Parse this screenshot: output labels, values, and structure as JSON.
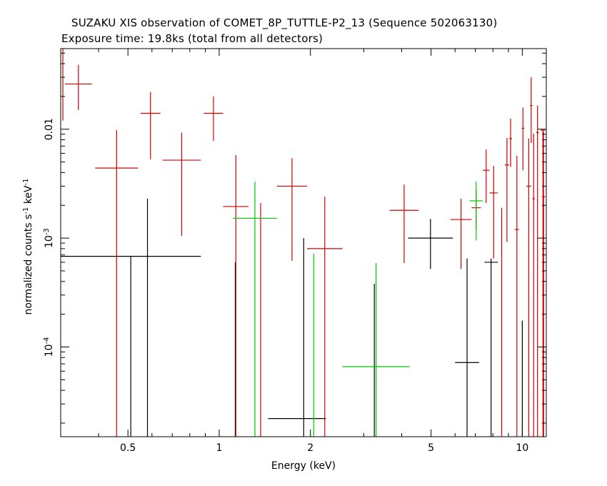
{
  "title": "SUZAKU XIS observation of COMET_8P_TUTTLE-P2_13 (Sequence 502063130)",
  "subtitle": "Exposure time: 19.8ks (total from all detectors)",
  "chart_data": {
    "type": "scatter",
    "xlabel": "Energy (keV)",
    "ylabel": "normalized counts s^-1 keV^-1",
    "x_scale": "log",
    "y_scale": "log",
    "xlim": [
      0.3,
      12.0
    ],
    "ylim": [
      1.5e-05,
      0.055
    ],
    "x_ticks": [
      0.5,
      1,
      2,
      5,
      10
    ],
    "x_tick_labels": [
      "0.5",
      "1",
      "2",
      "5",
      "10"
    ],
    "y_ticks": [
      0.0001,
      0.001,
      0.01
    ],
    "y_tick_labels": [
      {
        "base": "10",
        "exp": "-4"
      },
      {
        "base": "10",
        "exp": "-3"
      },
      {
        "base": "0.01",
        "exp": ""
      }
    ],
    "series": [
      {
        "color": "#000000",
        "points": [
          {
            "x0": 0.3,
            "x1": 0.87,
            "y": 0.00068,
            "ylo": 1.5e-05,
            "yhi": 0.00068
          },
          {
            "x0": 0.58,
            "x1": 0.58,
            "y": 0.00068,
            "ylo": 1.5e-05,
            "yhi": 0.0023
          },
          {
            "x0": 1.13,
            "x1": 1.13,
            "y": 1.5e-05,
            "ylo": 1.5e-05,
            "yhi": 0.0006
          },
          {
            "x0": 1.45,
            "x1": 2.25,
            "y": 2.2e-05,
            "ylo": 2.2e-05,
            "yhi": 2.2e-05
          },
          {
            "x0": 1.9,
            "x1": 1.9,
            "y": 2.2e-05,
            "ylo": 1.5e-05,
            "yhi": 0.001
          },
          {
            "x0": 3.25,
            "x1": 3.25,
            "y": 1.5e-05,
            "ylo": 1.5e-05,
            "yhi": 0.00038
          },
          {
            "x0": 4.2,
            "x1": 5.9,
            "y": 0.001,
            "ylo": 0.00052,
            "yhi": 0.0015
          },
          {
            "x0": 6.0,
            "x1": 7.2,
            "y": 7.2e-05,
            "ylo": 1.5e-05,
            "yhi": 0.00065
          },
          {
            "x0": 7.5,
            "x1": 8.3,
            "y": 0.0006,
            "ylo": 1.5e-05,
            "yhi": 0.00065
          },
          {
            "x0": 10.0,
            "x1": 10.0,
            "y": 1.5e-05,
            "ylo": 1.5e-05,
            "yhi": 0.000175
          }
        ]
      },
      {
        "color": "#d40000",
        "points": [
          {
            "x0": 0.305,
            "x1": 0.305,
            "y": 0.028,
            "ylo": 0.012,
            "yhi": 0.055
          },
          {
            "x0": 0.31,
            "x1": 0.38,
            "y": 0.026,
            "ylo": 0.015,
            "yhi": 0.039
          },
          {
            "x0": 0.39,
            "x1": 0.54,
            "y": 0.0044,
            "ylo": 1.5e-05,
            "yhi": 0.0098
          },
          {
            "x0": 0.55,
            "x1": 0.64,
            "y": 0.014,
            "ylo": 0.0053,
            "yhi": 0.022
          },
          {
            "x0": 0.65,
            "x1": 0.87,
            "y": 0.0052,
            "ylo": 0.00105,
            "yhi": 0.0093
          },
          {
            "x0": 0.89,
            "x1": 1.03,
            "y": 0.014,
            "ylo": 0.0078,
            "yhi": 0.02
          },
          {
            "x0": 1.03,
            "x1": 1.25,
            "y": 0.00195,
            "ylo": 1.5e-05,
            "yhi": 0.0058
          },
          {
            "x0": 1.37,
            "x1": 1.37,
            "y": 1.5e-05,
            "ylo": 1.5e-05,
            "yhi": 0.0021
          },
          {
            "x0": 1.55,
            "x1": 1.95,
            "y": 0.003,
            "ylo": 0.00062,
            "yhi": 0.0054
          },
          {
            "x0": 1.95,
            "x1": 2.55,
            "y": 0.0008,
            "ylo": 1.5e-05,
            "yhi": 0.0024
          },
          {
            "x0": 3.65,
            "x1": 4.55,
            "y": 0.0018,
            "ylo": 0.00059,
            "yhi": 0.0031
          },
          {
            "x0": 5.8,
            "x1": 6.8,
            "y": 0.00148,
            "ylo": 0.00052,
            "yhi": 0.0023
          },
          {
            "x0": 6.8,
            "x1": 7.3,
            "y": 0.0019,
            "ylo": 0.0012,
            "yhi": 0.0028
          },
          {
            "x0": 7.4,
            "x1": 7.8,
            "y": 0.0042,
            "ylo": 0.0021,
            "yhi": 0.0065
          },
          {
            "x0": 7.8,
            "x1": 8.3,
            "y": 0.0026,
            "ylo": 0.00065,
            "yhi": 0.0046
          },
          {
            "x0": 8.55,
            "x1": 8.55,
            "y": 1.5e-05,
            "ylo": 1.5e-05,
            "yhi": 0.0019
          },
          {
            "x0": 8.75,
            "x1": 9.05,
            "y": 0.0047,
            "ylo": 0.00092,
            "yhi": 0.0083
          },
          {
            "x0": 9.05,
            "x1": 9.25,
            "y": 0.0082,
            "ylo": 0.0045,
            "yhi": 0.0125
          },
          {
            "x0": 9.45,
            "x1": 9.75,
            "y": 0.0012,
            "ylo": 1.5e-05,
            "yhi": 0.0057
          },
          {
            "x0": 9.95,
            "x1": 10.15,
            "y": 0.0102,
            "ylo": 0.0042,
            "yhi": 0.0158
          },
          {
            "x0": 10.3,
            "x1": 10.7,
            "y": 0.003,
            "ylo": 1.5e-05,
            "yhi": 0.0082
          },
          {
            "x0": 10.6,
            "x1": 10.8,
            "y": 0.0165,
            "ylo": 0.0075,
            "yhi": 0.03
          },
          {
            "x0": 10.8,
            "x1": 11.0,
            "y": 0.0023,
            "ylo": 1.5e-05,
            "yhi": 0.0091
          },
          {
            "x0": 11.1,
            "x1": 11.35,
            "y": 0.0093,
            "ylo": 1.5e-05,
            "yhi": 0.0165
          },
          {
            "x0": 11.5,
            "x1": 11.9,
            "y": 0.0098,
            "ylo": 1.5e-05,
            "yhi": 0.0098
          },
          {
            "x0": 11.6,
            "x1": 11.9,
            "y": 0.0024,
            "ylo": 1.5e-05,
            "yhi": 0.0024
          },
          {
            "x0": 11.75,
            "x1": 11.75,
            "y": 1.5e-05,
            "ylo": 1.5e-05,
            "yhi": 0.0095
          }
        ]
      },
      {
        "color": "#00c800",
        "points": [
          {
            "x0": 1.11,
            "x1": 1.55,
            "y": 0.00152,
            "ylo": 1.5e-05,
            "yhi": 0.0033
          },
          {
            "x0": 2.05,
            "x1": 2.05,
            "y": 1.5e-05,
            "ylo": 1.5e-05,
            "yhi": 0.00072
          },
          {
            "x0": 2.55,
            "x1": 4.25,
            "y": 6.6e-05,
            "ylo": 1.5e-05,
            "yhi": 0.00059
          },
          {
            "x0": 6.7,
            "x1": 7.4,
            "y": 0.0022,
            "ylo": 0.00095,
            "yhi": 0.0033
          }
        ]
      }
    ]
  }
}
